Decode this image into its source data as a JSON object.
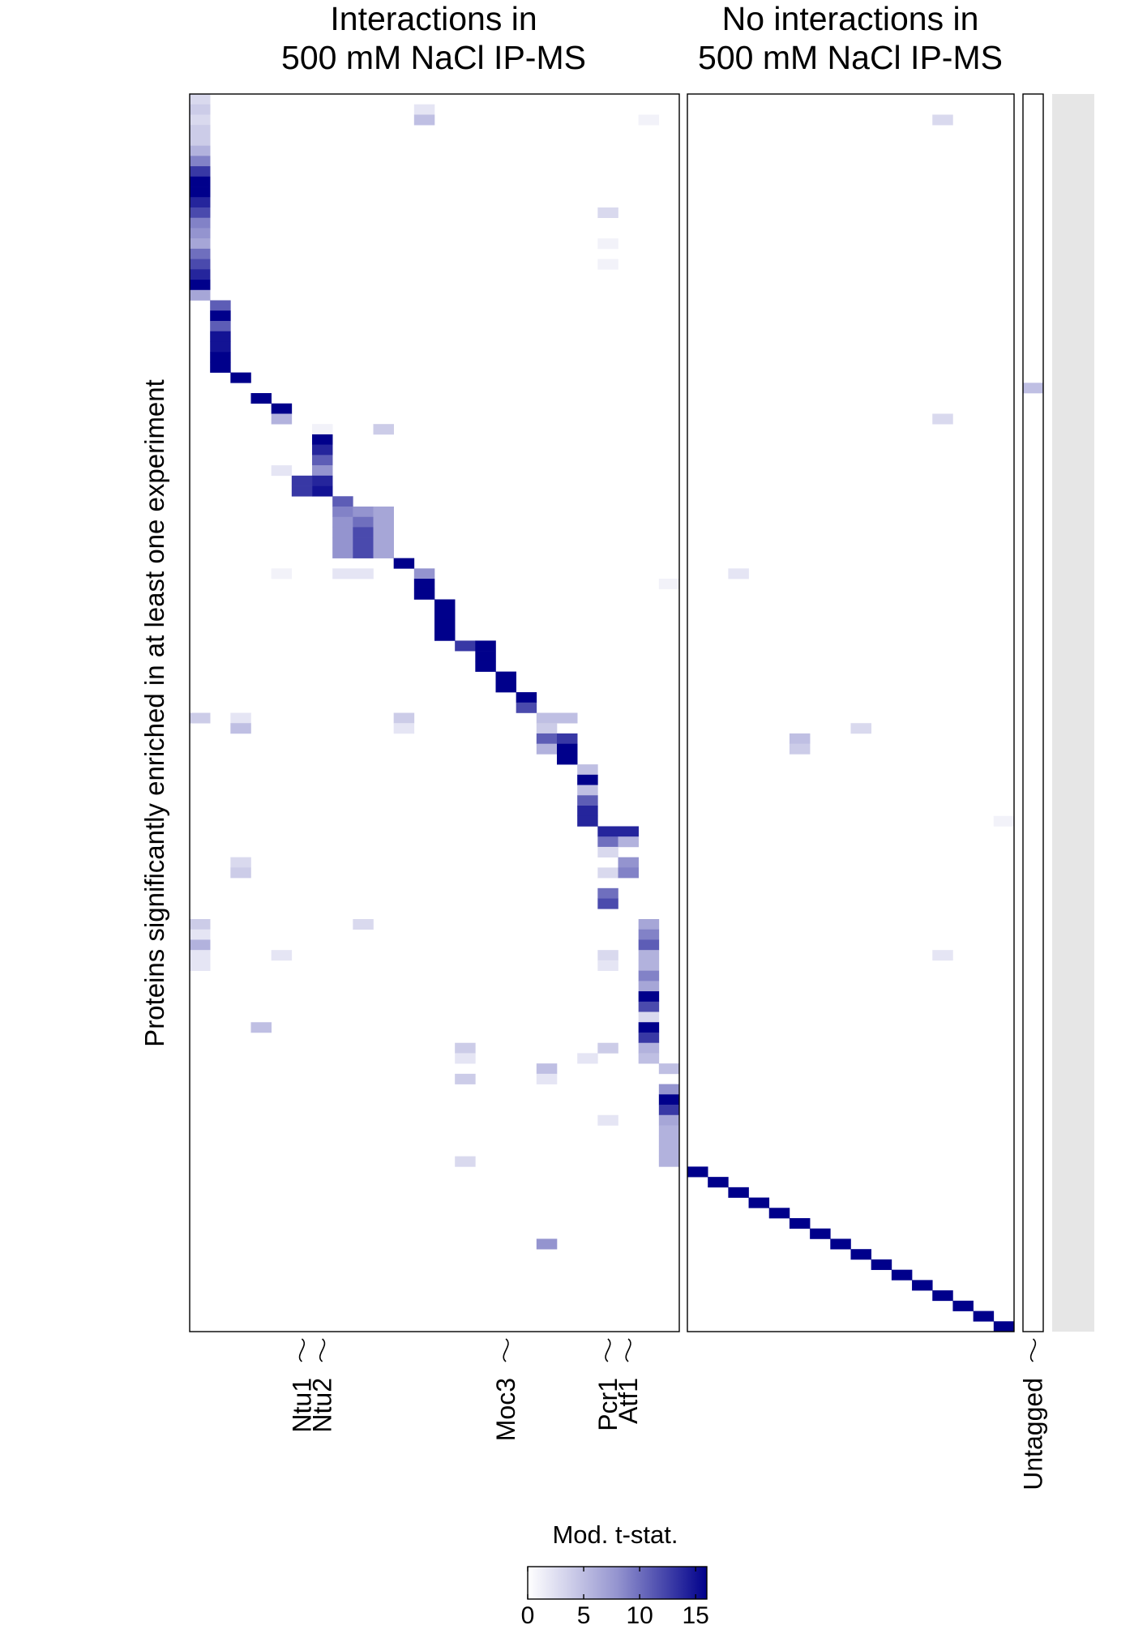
{
  "chart_data": {
    "type": "heatmap",
    "panels": [
      {
        "title": [
          "Interactions in",
          "500 mM NaCl IP-MS"
        ],
        "columns": 24
      },
      {
        "title": [
          "No interactions in",
          "500 mM NaCl IP-MS"
        ],
        "columns": 16
      },
      {
        "title": [
          "",
          ""
        ],
        "columns": 1
      }
    ],
    "ylabel": "Proteins significantly enriched in at least one experiment",
    "rows": 120,
    "column_labels": [
      {
        "label": "Ntu1",
        "panel": 0,
        "column": 5
      },
      {
        "label": "Ntu2",
        "panel": 0,
        "column": 6
      },
      {
        "label": "Moc3",
        "panel": 0,
        "column": 15
      },
      {
        "label": "Pcr1",
        "panel": 0,
        "column": 20
      },
      {
        "label": "Atf1",
        "panel": 0,
        "column": 21
      },
      {
        "label": "Untagged",
        "panel": 2,
        "column": 0
      }
    ],
    "legend": {
      "title": "Mod. t-stat.",
      "ticks": [
        0,
        5,
        10,
        15
      ],
      "range": [
        0,
        16
      ]
    },
    "colors": {
      "low": "#ffffff",
      "mid": "#a3a3d6",
      "high": "#00008b",
      "strip": "#e6e6e6"
    },
    "cells": [
      [
        0,
        0,
        0,
        3
      ],
      [
        0,
        0,
        1,
        4
      ],
      [
        0,
        0,
        2,
        3
      ],
      [
        0,
        0,
        3,
        4
      ],
      [
        0,
        0,
        4,
        4
      ],
      [
        0,
        0,
        5,
        6
      ],
      [
        0,
        0,
        6,
        9
      ],
      [
        0,
        0,
        7,
        13
      ],
      [
        0,
        0,
        8,
        16
      ],
      [
        0,
        0,
        9,
        16
      ],
      [
        0,
        0,
        10,
        14
      ],
      [
        0,
        0,
        11,
        12
      ],
      [
        0,
        0,
        12,
        9
      ],
      [
        0,
        0,
        13,
        8
      ],
      [
        0,
        0,
        14,
        7
      ],
      [
        0,
        0,
        15,
        10
      ],
      [
        0,
        0,
        16,
        12
      ],
      [
        0,
        0,
        17,
        14
      ],
      [
        0,
        0,
        18,
        16
      ],
      [
        0,
        0,
        19,
        7
      ],
      [
        0,
        1,
        20,
        11
      ],
      [
        0,
        1,
        21,
        16
      ],
      [
        0,
        1,
        22,
        11
      ],
      [
        0,
        1,
        23,
        15
      ],
      [
        0,
        1,
        24,
        15
      ],
      [
        0,
        1,
        25,
        16
      ],
      [
        0,
        1,
        26,
        16
      ],
      [
        0,
        2,
        27,
        16
      ],
      [
        0,
        3,
        29,
        16
      ],
      [
        0,
        4,
        30,
        16
      ],
      [
        0,
        4,
        31,
        6
      ],
      [
        0,
        6,
        32,
        1
      ],
      [
        0,
        6,
        33,
        16
      ],
      [
        0,
        6,
        34,
        14
      ],
      [
        0,
        6,
        35,
        11
      ],
      [
        0,
        6,
        36,
        8
      ],
      [
        0,
        6,
        37,
        14
      ],
      [
        0,
        6,
        38,
        15
      ],
      [
        0,
        5,
        37,
        13
      ],
      [
        0,
        5,
        38,
        13
      ],
      [
        0,
        7,
        39,
        11
      ],
      [
        0,
        7,
        40,
        9
      ],
      [
        0,
        7,
        41,
        8
      ],
      [
        0,
        7,
        42,
        8
      ],
      [
        0,
        7,
        43,
        8
      ],
      [
        0,
        7,
        44,
        8
      ],
      [
        0,
        8,
        40,
        8
      ],
      [
        0,
        8,
        41,
        10
      ],
      [
        0,
        8,
        42,
        12
      ],
      [
        0,
        8,
        43,
        12
      ],
      [
        0,
        8,
        44,
        12
      ],
      [
        0,
        9,
        40,
        7
      ],
      [
        0,
        9,
        41,
        7
      ],
      [
        0,
        9,
        42,
        7
      ],
      [
        0,
        9,
        43,
        7
      ],
      [
        0,
        9,
        44,
        7
      ],
      [
        0,
        10,
        45,
        16
      ],
      [
        0,
        11,
        46,
        8
      ],
      [
        0,
        11,
        47,
        16
      ],
      [
        0,
        11,
        48,
        16
      ],
      [
        0,
        12,
        49,
        16
      ],
      [
        0,
        12,
        50,
        16
      ],
      [
        0,
        12,
        51,
        16
      ],
      [
        0,
        12,
        52,
        16
      ],
      [
        0,
        13,
        53,
        13
      ],
      [
        0,
        14,
        53,
        16
      ],
      [
        0,
        14,
        54,
        16
      ],
      [
        0,
        14,
        55,
        16
      ],
      [
        0,
        15,
        56,
        16
      ],
      [
        0,
        15,
        57,
        16
      ],
      [
        0,
        16,
        58,
        16
      ],
      [
        0,
        16,
        59,
        12
      ],
      [
        0,
        17,
        60,
        5
      ],
      [
        0,
        18,
        60,
        5
      ],
      [
        0,
        17,
        61,
        4
      ],
      [
        0,
        17,
        62,
        11
      ],
      [
        0,
        18,
        62,
        13
      ],
      [
        0,
        17,
        63,
        6
      ],
      [
        0,
        18,
        63,
        16
      ],
      [
        0,
        18,
        64,
        16
      ],
      [
        0,
        19,
        65,
        5
      ],
      [
        0,
        19,
        66,
        16
      ],
      [
        0,
        19,
        67,
        5
      ],
      [
        0,
        19,
        68,
        11
      ],
      [
        0,
        19,
        69,
        14
      ],
      [
        0,
        19,
        70,
        14
      ],
      [
        0,
        20,
        71,
        14
      ],
      [
        0,
        21,
        71,
        14
      ],
      [
        0,
        20,
        72,
        10
      ],
      [
        0,
        21,
        72,
        6
      ],
      [
        0,
        20,
        73,
        3
      ],
      [
        0,
        21,
        74,
        8
      ],
      [
        0,
        20,
        75,
        3
      ],
      [
        0,
        21,
        75,
        9
      ],
      [
        0,
        20,
        77,
        10
      ],
      [
        0,
        20,
        78,
        12
      ],
      [
        0,
        22,
        80,
        7
      ],
      [
        0,
        22,
        81,
        9
      ],
      [
        0,
        22,
        82,
        11
      ],
      [
        0,
        22,
        83,
        6
      ],
      [
        0,
        22,
        84,
        6
      ],
      [
        0,
        22,
        85,
        9
      ],
      [
        0,
        22,
        86,
        7
      ],
      [
        0,
        22,
        87,
        16
      ],
      [
        0,
        22,
        88,
        12
      ],
      [
        0,
        22,
        89,
        3
      ],
      [
        0,
        22,
        90,
        16
      ],
      [
        0,
        22,
        91,
        13
      ],
      [
        0,
        22,
        92,
        6
      ],
      [
        0,
        22,
        93,
        5
      ],
      [
        0,
        23,
        94,
        5
      ],
      [
        0,
        23,
        96,
        8
      ],
      [
        0,
        23,
        97,
        16
      ],
      [
        0,
        23,
        98,
        13
      ],
      [
        0,
        23,
        99,
        7
      ],
      [
        0,
        23,
        100,
        6
      ],
      [
        0,
        23,
        101,
        6
      ],
      [
        0,
        23,
        102,
        6
      ],
      [
        0,
        23,
        103,
        6
      ],
      [
        0,
        0,
        60,
        4
      ],
      [
        0,
        2,
        60,
        2
      ],
      [
        0,
        2,
        61,
        5
      ],
      [
        0,
        2,
        74,
        3
      ],
      [
        0,
        2,
        75,
        4
      ],
      [
        0,
        0,
        80,
        4
      ],
      [
        0,
        0,
        81,
        2
      ],
      [
        0,
        0,
        82,
        6
      ],
      [
        0,
        0,
        83,
        2
      ],
      [
        0,
        0,
        84,
        2
      ],
      [
        0,
        11,
        1,
        2
      ],
      [
        0,
        11,
        2,
        5
      ],
      [
        0,
        9,
        32,
        4
      ],
      [
        0,
        4,
        36,
        2
      ],
      [
        0,
        4,
        46,
        1
      ],
      [
        0,
        7,
        46,
        2
      ],
      [
        0,
        8,
        46,
        2
      ],
      [
        0,
        10,
        60,
        4
      ],
      [
        0,
        10,
        61,
        2
      ],
      [
        0,
        8,
        80,
        3
      ],
      [
        0,
        4,
        83,
        2
      ],
      [
        0,
        20,
        11,
        3
      ],
      [
        0,
        20,
        14,
        1
      ],
      [
        0,
        20,
        16,
        1
      ],
      [
        0,
        20,
        83,
        3
      ],
      [
        0,
        20,
        84,
        2
      ],
      [
        0,
        20,
        92,
        4
      ],
      [
        0,
        20,
        99,
        2
      ],
      [
        0,
        3,
        90,
        5
      ],
      [
        0,
        13,
        92,
        4
      ],
      [
        0,
        13,
        93,
        2
      ],
      [
        0,
        19,
        93,
        2
      ],
      [
        0,
        17,
        94,
        5
      ],
      [
        0,
        17,
        95,
        2
      ],
      [
        0,
        17,
        111,
        8
      ],
      [
        0,
        13,
        95,
        4
      ],
      [
        0,
        13,
        103,
        3
      ],
      [
        0,
        22,
        2,
        1
      ],
      [
        0,
        23,
        47,
        1
      ],
      [
        1,
        12,
        2,
        3
      ],
      [
        1,
        12,
        31,
        3
      ],
      [
        1,
        12,
        83,
        2
      ],
      [
        1,
        2,
        46,
        2
      ],
      [
        1,
        5,
        62,
        5
      ],
      [
        1,
        5,
        63,
        4
      ],
      [
        1,
        8,
        61,
        3
      ],
      [
        1,
        15,
        70,
        1
      ],
      [
        1,
        0,
        104,
        16
      ],
      [
        1,
        1,
        105,
        16
      ],
      [
        1,
        2,
        106,
        16
      ],
      [
        1,
        3,
        107,
        16
      ],
      [
        1,
        4,
        108,
        16
      ],
      [
        1,
        5,
        109,
        16
      ],
      [
        1,
        6,
        110,
        16
      ],
      [
        1,
        7,
        111,
        16
      ],
      [
        1,
        8,
        112,
        16
      ],
      [
        1,
        9,
        113,
        16
      ],
      [
        1,
        10,
        114,
        16
      ],
      [
        1,
        11,
        115,
        16
      ],
      [
        1,
        12,
        116,
        16
      ],
      [
        1,
        13,
        117,
        16
      ],
      [
        1,
        14,
        118,
        16
      ],
      [
        1,
        15,
        119,
        16
      ],
      [
        2,
        0,
        28,
        5
      ]
    ]
  }
}
